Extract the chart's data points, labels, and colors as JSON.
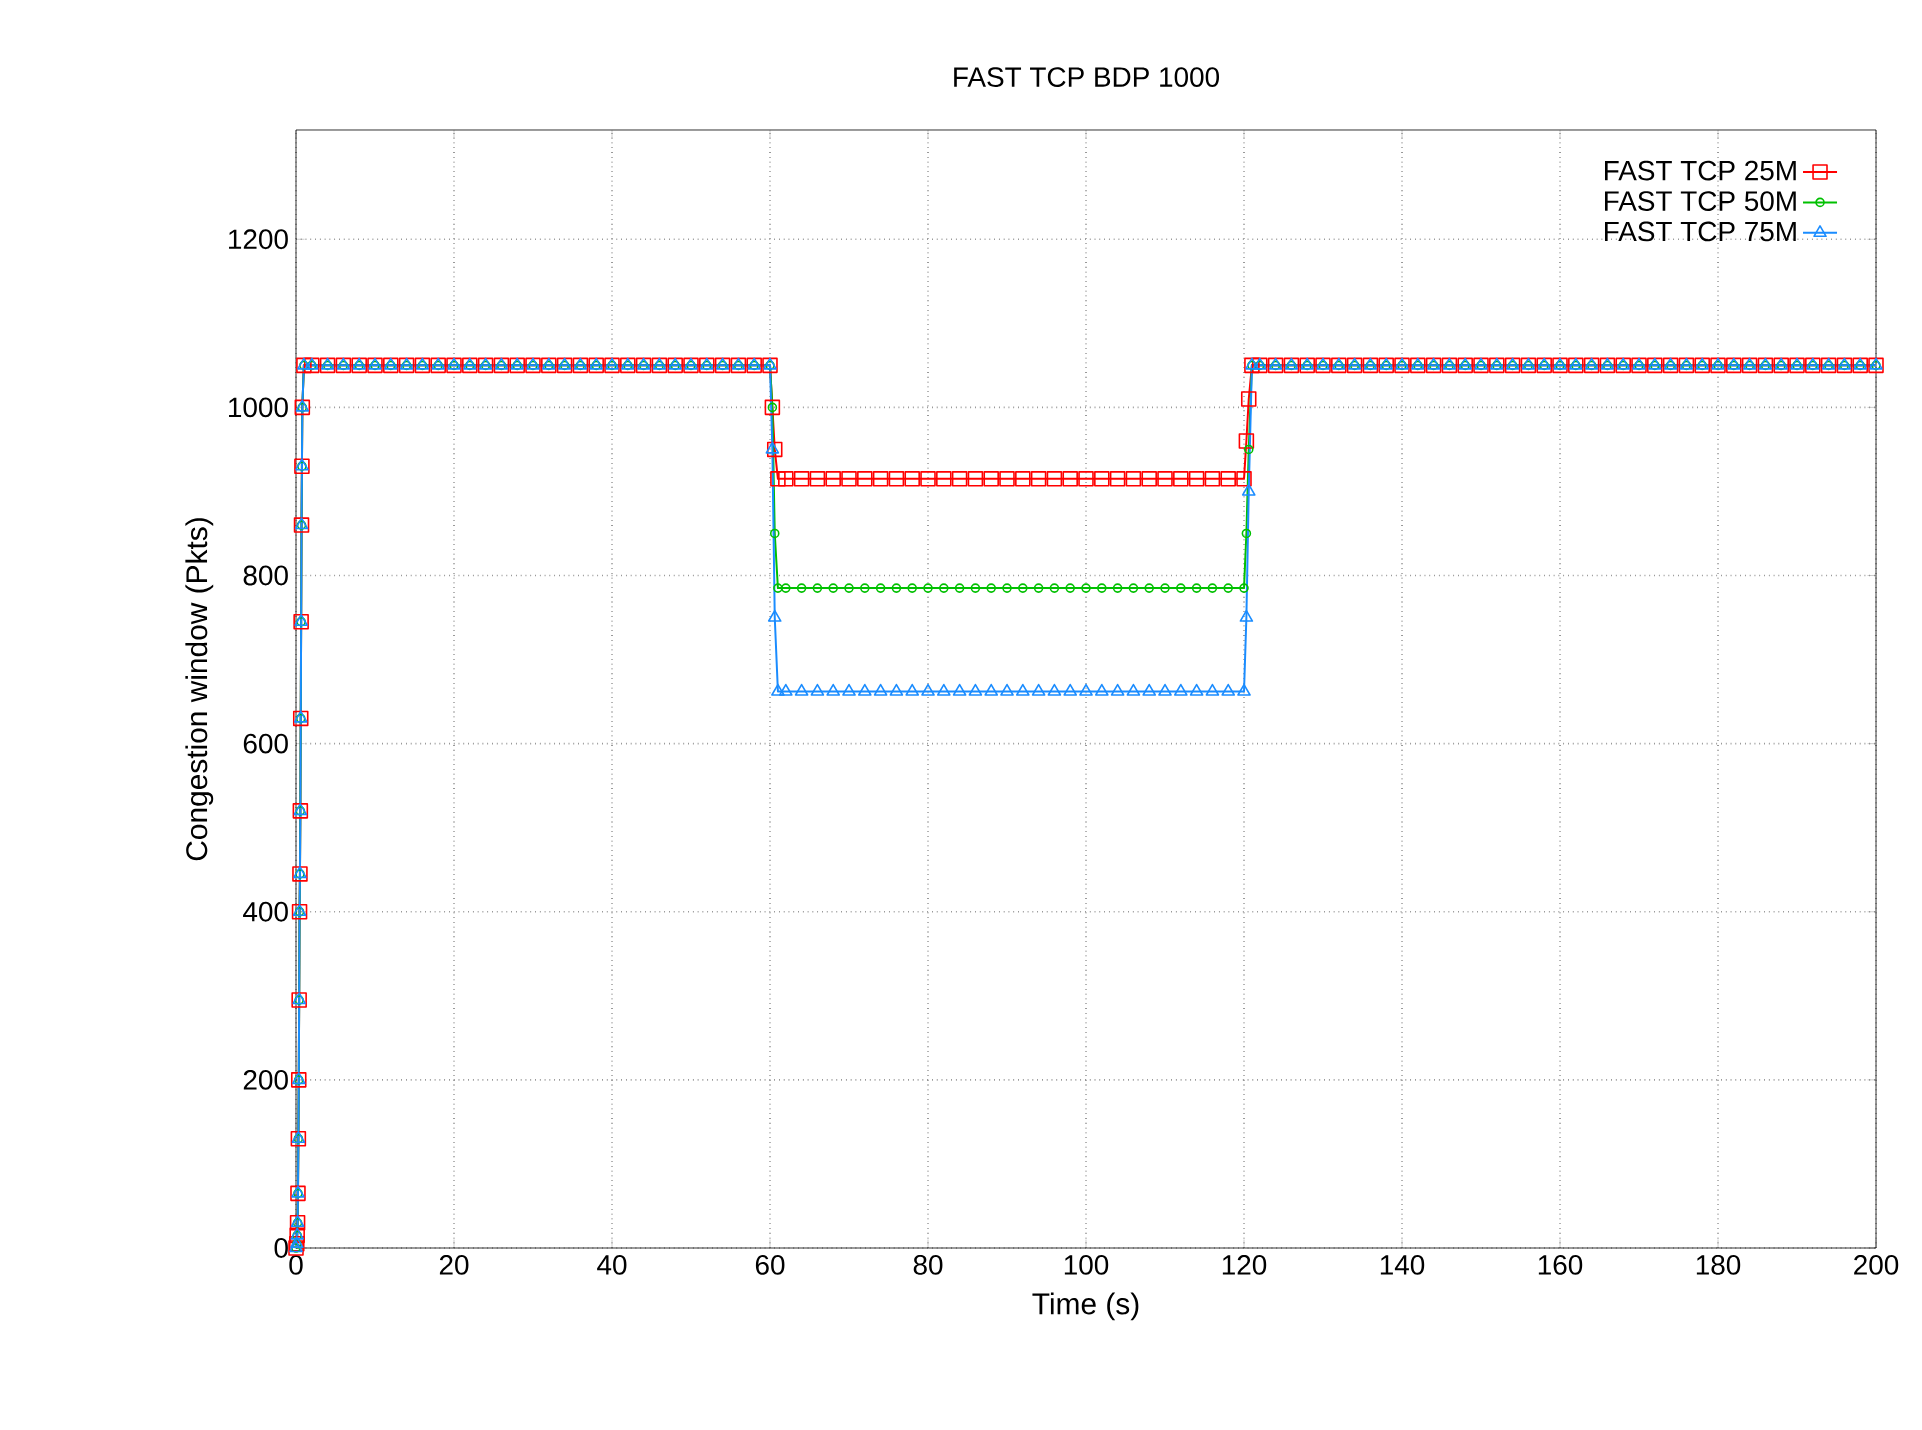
{
  "chart_data": {
    "type": "line",
    "title": "FAST TCP BDP 1000",
    "xlabel": "Time (s)",
    "ylabel": "Congestion window (Pkts)",
    "xlim": [
      0,
      200
    ],
    "ylim": [
      0,
      1330
    ],
    "xticks": [
      0,
      20,
      40,
      60,
      80,
      100,
      120,
      140,
      160,
      180,
      200
    ],
    "yticks": [
      0,
      200,
      400,
      600,
      800,
      1000,
      1200
    ],
    "grid": true,
    "legend": "top right",
    "x": [
      0,
      0.1,
      0.15,
      0.2,
      0.25,
      0.3,
      0.35,
      0.4,
      0.45,
      0.5,
      0.55,
      0.6,
      0.65,
      0.7,
      0.75,
      0.8,
      1,
      2,
      4,
      6,
      8,
      10,
      12,
      14,
      16,
      18,
      20,
      22,
      24,
      26,
      28,
      30,
      32,
      34,
      36,
      38,
      40,
      42,
      44,
      46,
      48,
      50,
      52,
      54,
      56,
      58,
      60,
      60.3,
      60.6,
      61,
      62,
      64,
      66,
      68,
      70,
      72,
      74,
      76,
      78,
      80,
      82,
      84,
      86,
      88,
      90,
      92,
      94,
      96,
      98,
      100,
      102,
      104,
      106,
      108,
      110,
      112,
      114,
      116,
      118,
      120,
      120.3,
      120.6,
      121,
      122,
      124,
      126,
      128,
      130,
      132,
      134,
      136,
      138,
      140,
      142,
      144,
      146,
      148,
      150,
      152,
      154,
      156,
      158,
      160,
      162,
      164,
      166,
      168,
      170,
      172,
      174,
      176,
      178,
      180,
      182,
      184,
      186,
      188,
      190,
      192,
      194,
      196,
      198,
      200
    ],
    "series": [
      {
        "name": "FAST TCP 25M",
        "color": "#ff0000",
        "marker": "square",
        "values": [
          0,
          5,
          15,
          30,
          65,
          130,
          200,
          295,
          400,
          445,
          520,
          630,
          745,
          860,
          930,
          1000,
          1050,
          1050,
          1050,
          1050,
          1050,
          1050,
          1050,
          1050,
          1050,
          1050,
          1050,
          1050,
          1050,
          1050,
          1050,
          1050,
          1050,
          1050,
          1050,
          1050,
          1050,
          1050,
          1050,
          1050,
          1050,
          1050,
          1050,
          1050,
          1050,
          1050,
          1050,
          1000,
          950,
          915,
          915,
          915,
          915,
          915,
          915,
          915,
          915,
          915,
          915,
          915,
          915,
          915,
          915,
          915,
          915,
          915,
          915,
          915,
          915,
          915,
          915,
          915,
          915,
          915,
          915,
          915,
          915,
          915,
          915,
          915,
          960,
          1010,
          1050,
          1050,
          1050,
          1050,
          1050,
          1050,
          1050,
          1050,
          1050,
          1050,
          1050,
          1050,
          1050,
          1050,
          1050,
          1050,
          1050,
          1050,
          1050,
          1050,
          1050,
          1050,
          1050,
          1050,
          1050,
          1050,
          1050,
          1050,
          1050,
          1050,
          1050,
          1050,
          1050,
          1050,
          1050,
          1050,
          1050,
          1050,
          1050,
          1050,
          1050
        ]
      },
      {
        "name": "FAST TCP 50M",
        "color": "#00c000",
        "marker": "circle",
        "values": [
          0,
          5,
          15,
          30,
          65,
          130,
          200,
          295,
          400,
          445,
          520,
          630,
          745,
          860,
          930,
          1000,
          1050,
          1050,
          1050,
          1050,
          1050,
          1050,
          1050,
          1050,
          1050,
          1050,
          1050,
          1050,
          1050,
          1050,
          1050,
          1050,
          1050,
          1050,
          1050,
          1050,
          1050,
          1050,
          1050,
          1050,
          1050,
          1050,
          1050,
          1050,
          1050,
          1050,
          1050,
          1000,
          850,
          785,
          785,
          785,
          785,
          785,
          785,
          785,
          785,
          785,
          785,
          785,
          785,
          785,
          785,
          785,
          785,
          785,
          785,
          785,
          785,
          785,
          785,
          785,
          785,
          785,
          785,
          785,
          785,
          785,
          785,
          785,
          850,
          950,
          1050,
          1050,
          1050,
          1050,
          1050,
          1050,
          1050,
          1050,
          1050,
          1050,
          1050,
          1050,
          1050,
          1050,
          1050,
          1050,
          1050,
          1050,
          1050,
          1050,
          1050,
          1050,
          1050,
          1050,
          1050,
          1050,
          1050,
          1050,
          1050,
          1050,
          1050,
          1050,
          1050,
          1050,
          1050,
          1050,
          1050,
          1050,
          1050,
          1050,
          1050
        ]
      },
      {
        "name": "FAST TCP 75M",
        "color": "#1a8cff",
        "marker": "triangle",
        "values": [
          0,
          5,
          15,
          30,
          65,
          130,
          200,
          295,
          400,
          445,
          520,
          630,
          745,
          860,
          930,
          1000,
          1050,
          1050,
          1050,
          1050,
          1050,
          1050,
          1050,
          1050,
          1050,
          1050,
          1050,
          1050,
          1050,
          1050,
          1050,
          1050,
          1050,
          1050,
          1050,
          1050,
          1050,
          1050,
          1050,
          1050,
          1050,
          1050,
          1050,
          1050,
          1050,
          1050,
          1050,
          950,
          750,
          662,
          662,
          662,
          662,
          662,
          662,
          662,
          662,
          662,
          662,
          662,
          662,
          662,
          662,
          662,
          662,
          662,
          662,
          662,
          662,
          662,
          662,
          662,
          662,
          662,
          662,
          662,
          662,
          662,
          662,
          662,
          750,
          900,
          1050,
          1050,
          1050,
          1050,
          1050,
          1050,
          1050,
          1050,
          1050,
          1050,
          1050,
          1050,
          1050,
          1050,
          1050,
          1050,
          1050,
          1050,
          1050,
          1050,
          1050,
          1050,
          1050,
          1050,
          1050,
          1050,
          1050,
          1050,
          1050,
          1050,
          1050,
          1050,
          1050,
          1050,
          1050,
          1050,
          1050,
          1050,
          1050,
          1050,
          1050
        ]
      }
    ]
  }
}
